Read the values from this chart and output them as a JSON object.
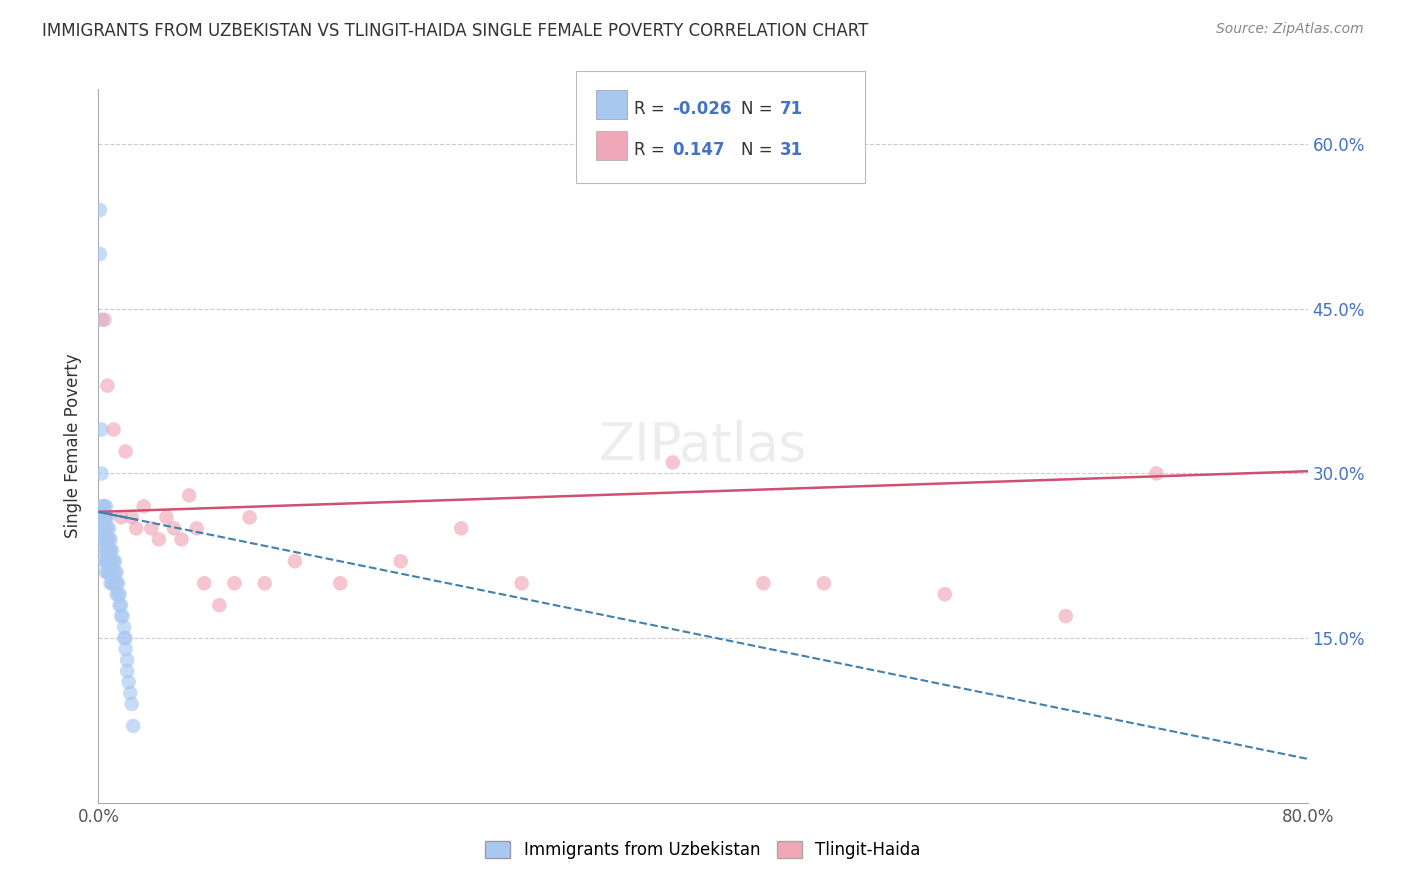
{
  "title": "IMMIGRANTS FROM UZBEKISTAN VS TLINGIT-HAIDA SINGLE FEMALE POVERTY CORRELATION CHART",
  "source": "Source: ZipAtlas.com",
  "ylabel": "Single Female Poverty",
  "legend_label_1": "Immigrants from Uzbekistan",
  "legend_label_2": "Tlingit-Haida",
  "r1_label": "R = ",
  "r1_val": "-0.026",
  "n1_label": "N = ",
  "n1_val": "71",
  "r2_label": "R =   ",
  "r2_val": "0.147",
  "n2_label": "N = ",
  "n2_val": "31",
  "xlim": [
    0.0,
    0.8
  ],
  "ylim": [
    0.0,
    0.65
  ],
  "color_blue": "#A8C8F0",
  "color_pink": "#F0A8B8",
  "color_blue_line": "#4080B0",
  "color_pink_line": "#D05070",
  "background": "#FFFFFF",
  "blue_scatter_x": [
    0.001,
    0.001,
    0.002,
    0.002,
    0.002,
    0.003,
    0.003,
    0.003,
    0.003,
    0.003,
    0.003,
    0.004,
    0.004,
    0.004,
    0.004,
    0.004,
    0.004,
    0.004,
    0.005,
    0.005,
    0.005,
    0.005,
    0.005,
    0.005,
    0.005,
    0.006,
    0.006,
    0.006,
    0.006,
    0.006,
    0.006,
    0.007,
    0.007,
    0.007,
    0.007,
    0.007,
    0.008,
    0.008,
    0.008,
    0.008,
    0.008,
    0.009,
    0.009,
    0.009,
    0.009,
    0.01,
    0.01,
    0.01,
    0.011,
    0.011,
    0.011,
    0.012,
    0.012,
    0.012,
    0.013,
    0.013,
    0.014,
    0.014,
    0.015,
    0.015,
    0.016,
    0.017,
    0.017,
    0.018,
    0.018,
    0.019,
    0.019,
    0.02,
    0.021,
    0.022,
    0.023
  ],
  "blue_scatter_y": [
    0.54,
    0.5,
    0.44,
    0.34,
    0.3,
    0.27,
    0.27,
    0.26,
    0.26,
    0.25,
    0.24,
    0.27,
    0.26,
    0.26,
    0.25,
    0.24,
    0.23,
    0.22,
    0.27,
    0.26,
    0.25,
    0.24,
    0.23,
    0.22,
    0.21,
    0.26,
    0.25,
    0.24,
    0.23,
    0.22,
    0.21,
    0.25,
    0.24,
    0.23,
    0.22,
    0.21,
    0.24,
    0.23,
    0.22,
    0.21,
    0.2,
    0.23,
    0.22,
    0.21,
    0.2,
    0.22,
    0.21,
    0.2,
    0.22,
    0.21,
    0.2,
    0.21,
    0.2,
    0.19,
    0.2,
    0.19,
    0.19,
    0.18,
    0.18,
    0.17,
    0.17,
    0.16,
    0.15,
    0.15,
    0.14,
    0.13,
    0.12,
    0.11,
    0.1,
    0.09,
    0.07
  ],
  "pink_scatter_x": [
    0.004,
    0.006,
    0.01,
    0.015,
    0.018,
    0.022,
    0.025,
    0.03,
    0.035,
    0.04,
    0.045,
    0.05,
    0.055,
    0.06,
    0.065,
    0.07,
    0.08,
    0.09,
    0.1,
    0.11,
    0.13,
    0.16,
    0.2,
    0.24,
    0.28,
    0.38,
    0.44,
    0.48,
    0.56,
    0.64,
    0.7
  ],
  "pink_scatter_y": [
    0.44,
    0.38,
    0.34,
    0.26,
    0.32,
    0.26,
    0.25,
    0.27,
    0.25,
    0.24,
    0.26,
    0.25,
    0.24,
    0.28,
    0.25,
    0.2,
    0.18,
    0.2,
    0.26,
    0.2,
    0.22,
    0.2,
    0.22,
    0.25,
    0.2,
    0.31,
    0.2,
    0.2,
    0.19,
    0.17,
    0.3
  ],
  "blue_line_x0": 0.0,
  "blue_line_y0": 0.265,
  "blue_line_x1": 0.8,
  "blue_line_y1": 0.04,
  "pink_line_x0": 0.0,
  "pink_line_y0": 0.265,
  "pink_line_x1": 0.8,
  "pink_line_y1": 0.302
}
